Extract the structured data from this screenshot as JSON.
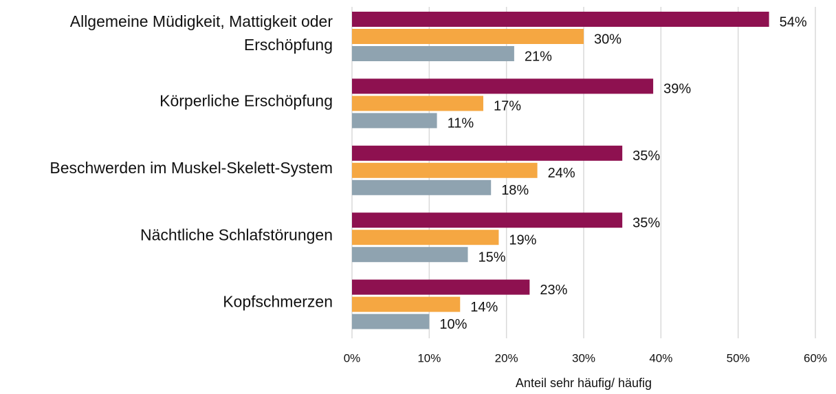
{
  "chart_data": {
    "type": "hbar",
    "categories": [
      "Allgemeine Müdigkeit, Mattigkeit oder Erschöpfung",
      "Körperliche Erschöpfung",
      "Beschwerden im Muskel-Skelett-System",
      "Nächtliche Schlafstörungen",
      "Kopfschmerzen"
    ],
    "series": [
      {
        "color": "#8e1150",
        "values": [
          54,
          39,
          35,
          35,
          23
        ],
        "value_labels": [
          "54%",
          "39%",
          "35%",
          "35%",
          "23%"
        ]
      },
      {
        "color": "#f5a742",
        "values": [
          30,
          17,
          24,
          19,
          14
        ],
        "value_labels": [
          "30%",
          "17%",
          "24%",
          "19%",
          "14%"
        ]
      },
      {
        "color": "#8fa3b0",
        "values": [
          21,
          11,
          18,
          15,
          10
        ],
        "value_labels": [
          "21%",
          "11%",
          "18%",
          "15%",
          "10%"
        ]
      }
    ],
    "xlabel": "Anteil sehr häufig/ häufig",
    "xlim": [
      0,
      60
    ],
    "xticks": [
      {
        "value": 0,
        "label": "0%"
      },
      {
        "value": 10,
        "label": "10%"
      },
      {
        "value": 20,
        "label": "20%"
      },
      {
        "value": 30,
        "label": "30%"
      },
      {
        "value": 40,
        "label": "40%"
      },
      {
        "value": 50,
        "label": "50%"
      },
      {
        "value": 60,
        "label": "60%"
      }
    ],
    "grid": true
  }
}
